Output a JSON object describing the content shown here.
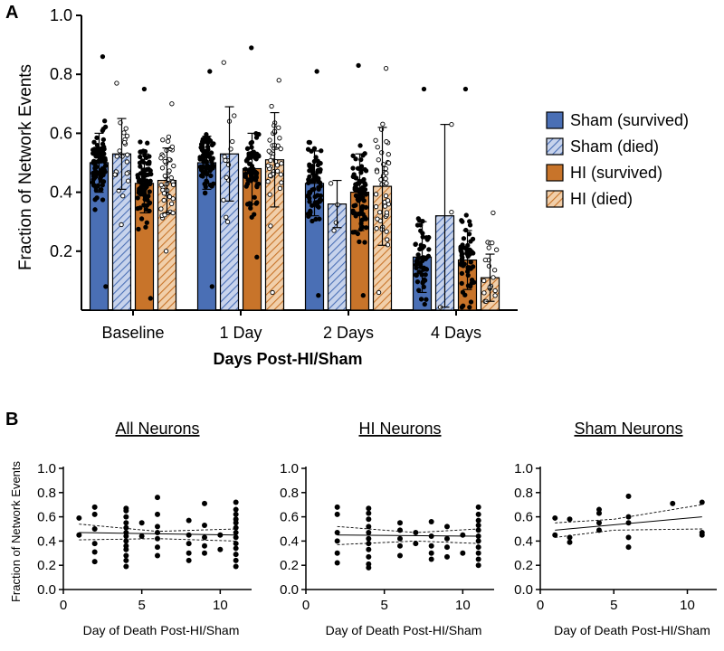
{
  "panel_labels": {
    "a": "A",
    "b": "B"
  },
  "colors": {
    "sham": "#4a6fb5",
    "sham_light": "#c7d3ec",
    "hi": "#c8742a",
    "hi_light": "#f1cfaa",
    "point": "#000000",
    "axis": "#000000"
  },
  "chart_data": [
    {
      "type": "bar",
      "panel": "A",
      "title": "",
      "xlabel": "Days Post-HI/Sham",
      "ylabel": "Fraction of Network Events",
      "ylim": [
        0.0,
        1.0
      ],
      "yticks": [
        "0.2",
        "0.4",
        "0.6",
        "0.8",
        "1.0"
      ],
      "ytick_values": [
        0.2,
        0.4,
        0.6,
        0.8,
        1.0
      ],
      "categories": [
        "Baseline",
        "1 Day",
        "2 Days",
        "4 Days"
      ],
      "legend_position": "right",
      "series": [
        {
          "name": "Sham (survived)",
          "style": "solid",
          "color_key": "sham",
          "values": [
            0.5,
            0.5,
            0.43,
            0.18
          ],
          "sd": [
            0.1,
            0.09,
            0.11,
            0.12
          ],
          "points_n": [
            90,
            70,
            75,
            55
          ],
          "point_range": [
            [
              0.08,
              0.86
            ],
            [
              0.08,
              0.81
            ],
            [
              0.05,
              0.81
            ],
            [
              0.02,
              0.75
            ]
          ],
          "open_points": false
        },
        {
          "name": "Sham (died)",
          "style": "hatched",
          "color_key": "sham",
          "values": [
            0.53,
            0.53,
            0.36,
            0.32
          ],
          "sd": [
            0.12,
            0.16,
            0.08,
            0.31
          ],
          "points_n": [
            22,
            14,
            4,
            3
          ],
          "point_range": [
            [
              0.29,
              0.77
            ],
            [
              0.3,
              0.84
            ],
            [
              0.27,
              0.43
            ],
            [
              0.01,
              0.63
            ]
          ],
          "open_points": true
        },
        {
          "name": "HI (survived)",
          "style": "solid",
          "color_key": "hi",
          "values": [
            0.43,
            0.48,
            0.4,
            0.17
          ],
          "sd": [
            0.1,
            0.12,
            0.13,
            0.1
          ],
          "points_n": [
            85,
            60,
            80,
            60
          ],
          "point_range": [
            [
              0.04,
              0.75
            ],
            [
              0.18,
              0.89
            ],
            [
              0.05,
              0.83
            ],
            [
              0.01,
              0.75
            ]
          ],
          "open_points": false
        },
        {
          "name": "HI (died)",
          "style": "hatched",
          "color_key": "hi",
          "values": [
            0.44,
            0.51,
            0.42,
            0.11
          ],
          "sd": [
            0.11,
            0.16,
            0.2,
            0.08
          ],
          "points_n": [
            50,
            40,
            45,
            20
          ],
          "point_range": [
            [
              0.2,
              0.7
            ],
            [
              0.06,
              0.78
            ],
            [
              0.06,
              0.82
            ],
            [
              0.03,
              0.33
            ]
          ],
          "open_points": true
        }
      ]
    },
    {
      "type": "scatter",
      "panel": "B",
      "title": "All Neurons",
      "xlabel": "Day of Death Post-HI/Sham",
      "ylabel": "Fraction of Network Events",
      "xlim": [
        0,
        12
      ],
      "ylim": [
        0.0,
        1.0
      ],
      "xticks": [
        "0",
        "5",
        "10"
      ],
      "xtick_values": [
        0,
        5,
        10
      ],
      "yticks": [
        "0.0",
        "0.2",
        "0.4",
        "0.6",
        "0.8",
        "1.0"
      ],
      "ytick_values": [
        0.0,
        0.2,
        0.4,
        0.6,
        0.8,
        1.0
      ],
      "points": [
        [
          1,
          0.59
        ],
        [
          1,
          0.45
        ],
        [
          2,
          0.68
        ],
        [
          2,
          0.62
        ],
        [
          2,
          0.5
        ],
        [
          2,
          0.38
        ],
        [
          2,
          0.31
        ],
        [
          2,
          0.23
        ],
        [
          4,
          0.67
        ],
        [
          4,
          0.65
        ],
        [
          4,
          0.6
        ],
        [
          4,
          0.55
        ],
        [
          4,
          0.51
        ],
        [
          4,
          0.47
        ],
        [
          4,
          0.44
        ],
        [
          4,
          0.4
        ],
        [
          4,
          0.36
        ],
        [
          4,
          0.33
        ],
        [
          4,
          0.28
        ],
        [
          4,
          0.24
        ],
        [
          4,
          0.19
        ],
        [
          5,
          0.55
        ],
        [
          5,
          0.44
        ],
        [
          6,
          0.76
        ],
        [
          6,
          0.62
        ],
        [
          6,
          0.52
        ],
        [
          6,
          0.47
        ],
        [
          6,
          0.42
        ],
        [
          6,
          0.35
        ],
        [
          6,
          0.28
        ],
        [
          8,
          0.57
        ],
        [
          8,
          0.45
        ],
        [
          8,
          0.38
        ],
        [
          8,
          0.3
        ],
        [
          8,
          0.24
        ],
        [
          9,
          0.71
        ],
        [
          9,
          0.53
        ],
        [
          9,
          0.43
        ],
        [
          9,
          0.36
        ],
        [
          9,
          0.3
        ],
        [
          10,
          0.45
        ],
        [
          10,
          0.33
        ],
        [
          11,
          0.72
        ],
        [
          11,
          0.66
        ],
        [
          11,
          0.62
        ],
        [
          11,
          0.58
        ],
        [
          11,
          0.55
        ],
        [
          11,
          0.51
        ],
        [
          11,
          0.47
        ],
        [
          11,
          0.43
        ],
        [
          11,
          0.38
        ],
        [
          11,
          0.34
        ],
        [
          11,
          0.29
        ],
        [
          11,
          0.24
        ],
        [
          11,
          0.19
        ]
      ],
      "fit": {
        "x": [
          1,
          11
        ],
        "y": [
          0.47,
          0.45
        ]
      },
      "ci_upper": {
        "x": [
          1,
          6,
          11
        ],
        "y": [
          0.54,
          0.48,
          0.5
        ]
      },
      "ci_lower": {
        "x": [
          1,
          6,
          11
        ],
        "y": [
          0.41,
          0.42,
          0.4
        ]
      }
    },
    {
      "type": "scatter",
      "panel": "B",
      "title": "HI Neurons",
      "xlabel": "Day of Death Post-HI/Sham",
      "ylabel": "",
      "xlim": [
        0,
        12
      ],
      "ylim": [
        0.0,
        1.0
      ],
      "xticks": [
        "0",
        "5",
        "10"
      ],
      "xtick_values": [
        0,
        5,
        10
      ],
      "yticks": [
        "0.0",
        "0.2",
        "0.4",
        "0.6",
        "0.8",
        "1.0"
      ],
      "ytick_values": [
        0.0,
        0.2,
        0.4,
        0.6,
        0.8,
        1.0
      ],
      "points": [
        [
          2,
          0.68
        ],
        [
          2,
          0.62
        ],
        [
          2,
          0.47
        ],
        [
          2,
          0.4
        ],
        [
          2,
          0.3
        ],
        [
          2,
          0.22
        ],
        [
          4,
          0.67
        ],
        [
          4,
          0.63
        ],
        [
          4,
          0.58
        ],
        [
          4,
          0.52
        ],
        [
          4,
          0.47
        ],
        [
          4,
          0.42
        ],
        [
          4,
          0.38
        ],
        [
          4,
          0.33
        ],
        [
          4,
          0.27
        ],
        [
          4,
          0.21
        ],
        [
          4,
          0.18
        ],
        [
          6,
          0.55
        ],
        [
          6,
          0.49
        ],
        [
          6,
          0.42
        ],
        [
          6,
          0.36
        ],
        [
          6,
          0.28
        ],
        [
          7,
          0.47
        ],
        [
          7,
          0.38
        ],
        [
          8,
          0.56
        ],
        [
          8,
          0.44
        ],
        [
          8,
          0.36
        ],
        [
          8,
          0.3
        ],
        [
          8,
          0.25
        ],
        [
          9,
          0.52
        ],
        [
          9,
          0.42
        ],
        [
          9,
          0.35
        ],
        [
          9,
          0.27
        ],
        [
          10,
          0.45
        ],
        [
          10,
          0.3
        ],
        [
          11,
          0.68
        ],
        [
          11,
          0.62
        ],
        [
          11,
          0.57
        ],
        [
          11,
          0.53
        ],
        [
          11,
          0.49
        ],
        [
          11,
          0.44
        ],
        [
          11,
          0.4
        ],
        [
          11,
          0.35
        ],
        [
          11,
          0.3
        ],
        [
          11,
          0.25
        ],
        [
          11,
          0.2
        ]
      ],
      "fit": {
        "x": [
          2,
          11
        ],
        "y": [
          0.45,
          0.44
        ]
      },
      "ci_upper": {
        "x": [
          2,
          7,
          11
        ],
        "y": [
          0.52,
          0.47,
          0.5
        ]
      },
      "ci_lower": {
        "x": [
          2,
          7,
          11
        ],
        "y": [
          0.37,
          0.4,
          0.38
        ]
      }
    },
    {
      "type": "scatter",
      "panel": "B",
      "title": "Sham Neurons",
      "xlabel": "Day of Death Post-HI/Sham",
      "ylabel": "",
      "xlim": [
        0,
        12
      ],
      "ylim": [
        0.0,
        1.0
      ],
      "xticks": [
        "0",
        "5",
        "10"
      ],
      "xtick_values": [
        0,
        5,
        10
      ],
      "yticks": [
        "0.0",
        "0.2",
        "0.4",
        "0.6",
        "0.8",
        "1.0"
      ],
      "ytick_values": [
        0.0,
        0.2,
        0.4,
        0.6,
        0.8,
        1.0
      ],
      "points": [
        [
          1,
          0.59
        ],
        [
          1,
          0.45
        ],
        [
          2,
          0.58
        ],
        [
          2,
          0.43
        ],
        [
          2,
          0.39
        ],
        [
          4,
          0.66
        ],
        [
          4,
          0.63
        ],
        [
          4,
          0.55
        ],
        [
          4,
          0.49
        ],
        [
          6,
          0.77
        ],
        [
          6,
          0.6
        ],
        [
          6,
          0.55
        ],
        [
          6,
          0.43
        ],
        [
          6,
          0.35
        ],
        [
          9,
          0.71
        ],
        [
          11,
          0.72
        ],
        [
          11,
          0.47
        ],
        [
          11,
          0.45
        ]
      ],
      "fit": {
        "x": [
          1,
          11
        ],
        "y": [
          0.49,
          0.6
        ]
      },
      "ci_upper": {
        "x": [
          1,
          5,
          11
        ],
        "y": [
          0.55,
          0.58,
          0.7
        ]
      },
      "ci_lower": {
        "x": [
          1,
          5,
          11
        ],
        "y": [
          0.43,
          0.49,
          0.5
        ]
      }
    }
  ]
}
